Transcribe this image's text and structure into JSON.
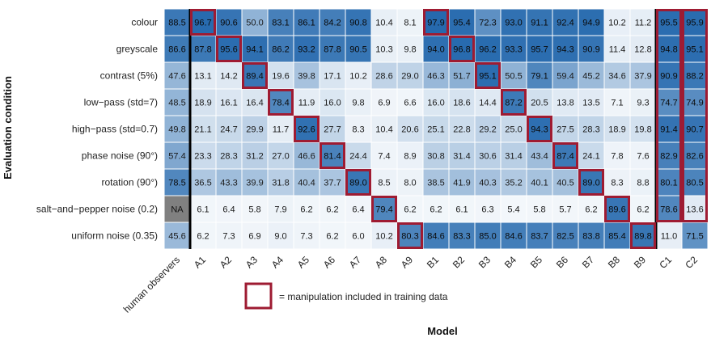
{
  "chart_data": {
    "type": "heatmap",
    "xlabel": "Model",
    "ylabel": "Evaluation condition",
    "columns": [
      "human observers",
      "A1",
      "A2",
      "A3",
      "A4",
      "A5",
      "A6",
      "A7",
      "A8",
      "A9",
      "B1",
      "B2",
      "B3",
      "B4",
      "B5",
      "B6",
      "B7",
      "B8",
      "B9",
      "C1",
      "C2"
    ],
    "rows": [
      "colour",
      "greyscale",
      "contrast (5%)",
      "low−pass (std=7)",
      "high−pass (std=0.7)",
      "phase noise (90°)",
      "rotation (90°)",
      "salt−and−pepper noise (0.2)",
      "uniform noise (0.35)"
    ],
    "values": [
      [
        "88.5",
        "96.7",
        "90.6",
        "50.0",
        "83.1",
        "86.1",
        "84.2",
        "90.8",
        "10.4",
        "8.1",
        "97.9",
        "95.4",
        "72.3",
        "93.0",
        "91.1",
        "92.4",
        "94.9",
        "10.2",
        "11.2",
        "95.5",
        "95.9"
      ],
      [
        "86.6",
        "87.8",
        "95.6",
        "94.1",
        "86.2",
        "93.2",
        "87.8",
        "90.5",
        "10.3",
        "9.8",
        "94.0",
        "96.8",
        "96.2",
        "93.3",
        "95.7",
        "94.3",
        "90.9",
        "11.4",
        "12.8",
        "94.8",
        "95.1"
      ],
      [
        "47.6",
        "13.1",
        "14.2",
        "89.4",
        "19.6",
        "39.8",
        "17.1",
        "10.2",
        "28.6",
        "29.0",
        "46.3",
        "51.7",
        "95.1",
        "50.5",
        "79.1",
        "59.4",
        "45.2",
        "34.6",
        "37.9",
        "90.9",
        "88.2"
      ],
      [
        "48.5",
        "18.9",
        "16.1",
        "16.4",
        "78.4",
        "11.9",
        "16.0",
        "9.8",
        "6.9",
        "6.6",
        "16.0",
        "18.6",
        "14.4",
        "87.2",
        "20.5",
        "13.8",
        "13.5",
        "7.1",
        "9.3",
        "74.7",
        "74.9"
      ],
      [
        "49.8",
        "21.1",
        "24.7",
        "29.9",
        "11.7",
        "92.6",
        "27.7",
        "8.3",
        "10.4",
        "20.6",
        "25.1",
        "22.8",
        "29.2",
        "25.0",
        "94.3",
        "27.5",
        "28.3",
        "18.9",
        "19.8",
        "91.4",
        "90.7"
      ],
      [
        "57.4",
        "23.3",
        "28.3",
        "31.2",
        "27.0",
        "46.6",
        "81.4",
        "24.4",
        "7.4",
        "8.9",
        "30.8",
        "31.4",
        "30.6",
        "31.4",
        "43.4",
        "87.4",
        "24.1",
        "7.8",
        "7.6",
        "82.9",
        "82.6"
      ],
      [
        "78.5",
        "36.5",
        "43.3",
        "39.9",
        "31.8",
        "40.4",
        "37.7",
        "89.0",
        "8.5",
        "8.0",
        "38.5",
        "41.9",
        "40.3",
        "35.2",
        "40.1",
        "40.5",
        "89.0",
        "8.3",
        "8.8",
        "80.1",
        "80.5"
      ],
      [
        "NA",
        "6.1",
        "6.4",
        "5.8",
        "7.9",
        "6.2",
        "6.2",
        "6.4",
        "79.4",
        "6.2",
        "6.2",
        "6.1",
        "6.3",
        "5.4",
        "5.8",
        "5.7",
        "6.2",
        "89.6",
        "6.2",
        "78.6",
        "13.6"
      ],
      [
        "45.6",
        "6.2",
        "7.3",
        "6.9",
        "9.0",
        "7.3",
        "6.2",
        "6.0",
        "10.2",
        "80.3",
        "84.6",
        "83.3",
        "85.0",
        "84.6",
        "83.7",
        "82.5",
        "83.8",
        "85.4",
        "89.8",
        "11.0",
        "71.5"
      ]
    ],
    "training_manipulations": [
      [
        "colour",
        "A1"
      ],
      [
        "greyscale",
        "A2"
      ],
      [
        "contrast (5%)",
        "A3"
      ],
      [
        "low−pass (std=7)",
        "A4"
      ],
      [
        "high−pass (std=0.7)",
        "A5"
      ],
      [
        "phase noise (90°)",
        "A6"
      ],
      [
        "rotation (90°)",
        "A7"
      ],
      [
        "salt−and−pepper noise (0.2)",
        "A8"
      ],
      [
        "uniform noise (0.35)",
        "A9"
      ],
      [
        "colour",
        "B1"
      ],
      [
        "greyscale",
        "B2"
      ],
      [
        "contrast (5%)",
        "B3"
      ],
      [
        "low−pass (std=7)",
        "B4"
      ],
      [
        "high−pass (std=0.7)",
        "B5"
      ],
      [
        "phase noise (90°)",
        "B6"
      ],
      [
        "rotation (90°)",
        "B7"
      ],
      [
        "salt−and−pepper noise (0.2)",
        "B8"
      ],
      [
        "uniform noise (0.35)",
        "B9"
      ]
    ],
    "fully_trained_columns": [
      "C1",
      "C2"
    ],
    "value_range": [
      0,
      100
    ],
    "colormap": "white-to-blue",
    "legend": "= manipulation included in training data"
  },
  "colors": {
    "low": "#ffffff",
    "high": "#2166ac",
    "na_cell": "#808080",
    "highlight_border": "#9e1b32",
    "separator": "#000000",
    "grid": "#ffffff"
  }
}
